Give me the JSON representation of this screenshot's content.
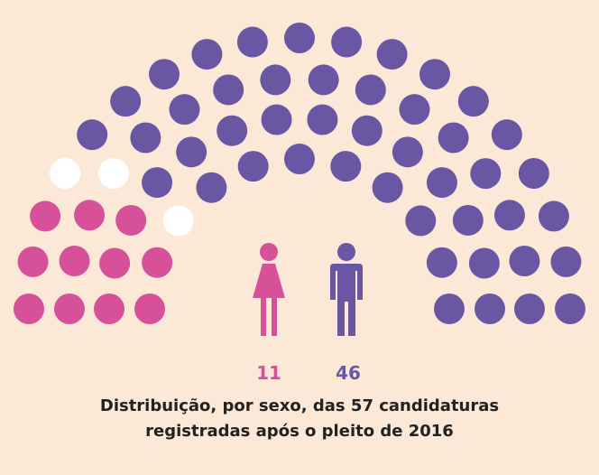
{
  "chart_data": {
    "type": "parliament",
    "title": "Distribuição, por sexo, das 57 candidaturas registradas após o pleito de 2016",
    "series": [
      {
        "color": "#d6509a",
        "values": [
          11
        ]
      },
      {
        "color": "#ffffff",
        "values": [
          3
        ]
      },
      {
        "color": "#6a57a4",
        "values": [
          46
        ]
      }
    ]
  }
}
